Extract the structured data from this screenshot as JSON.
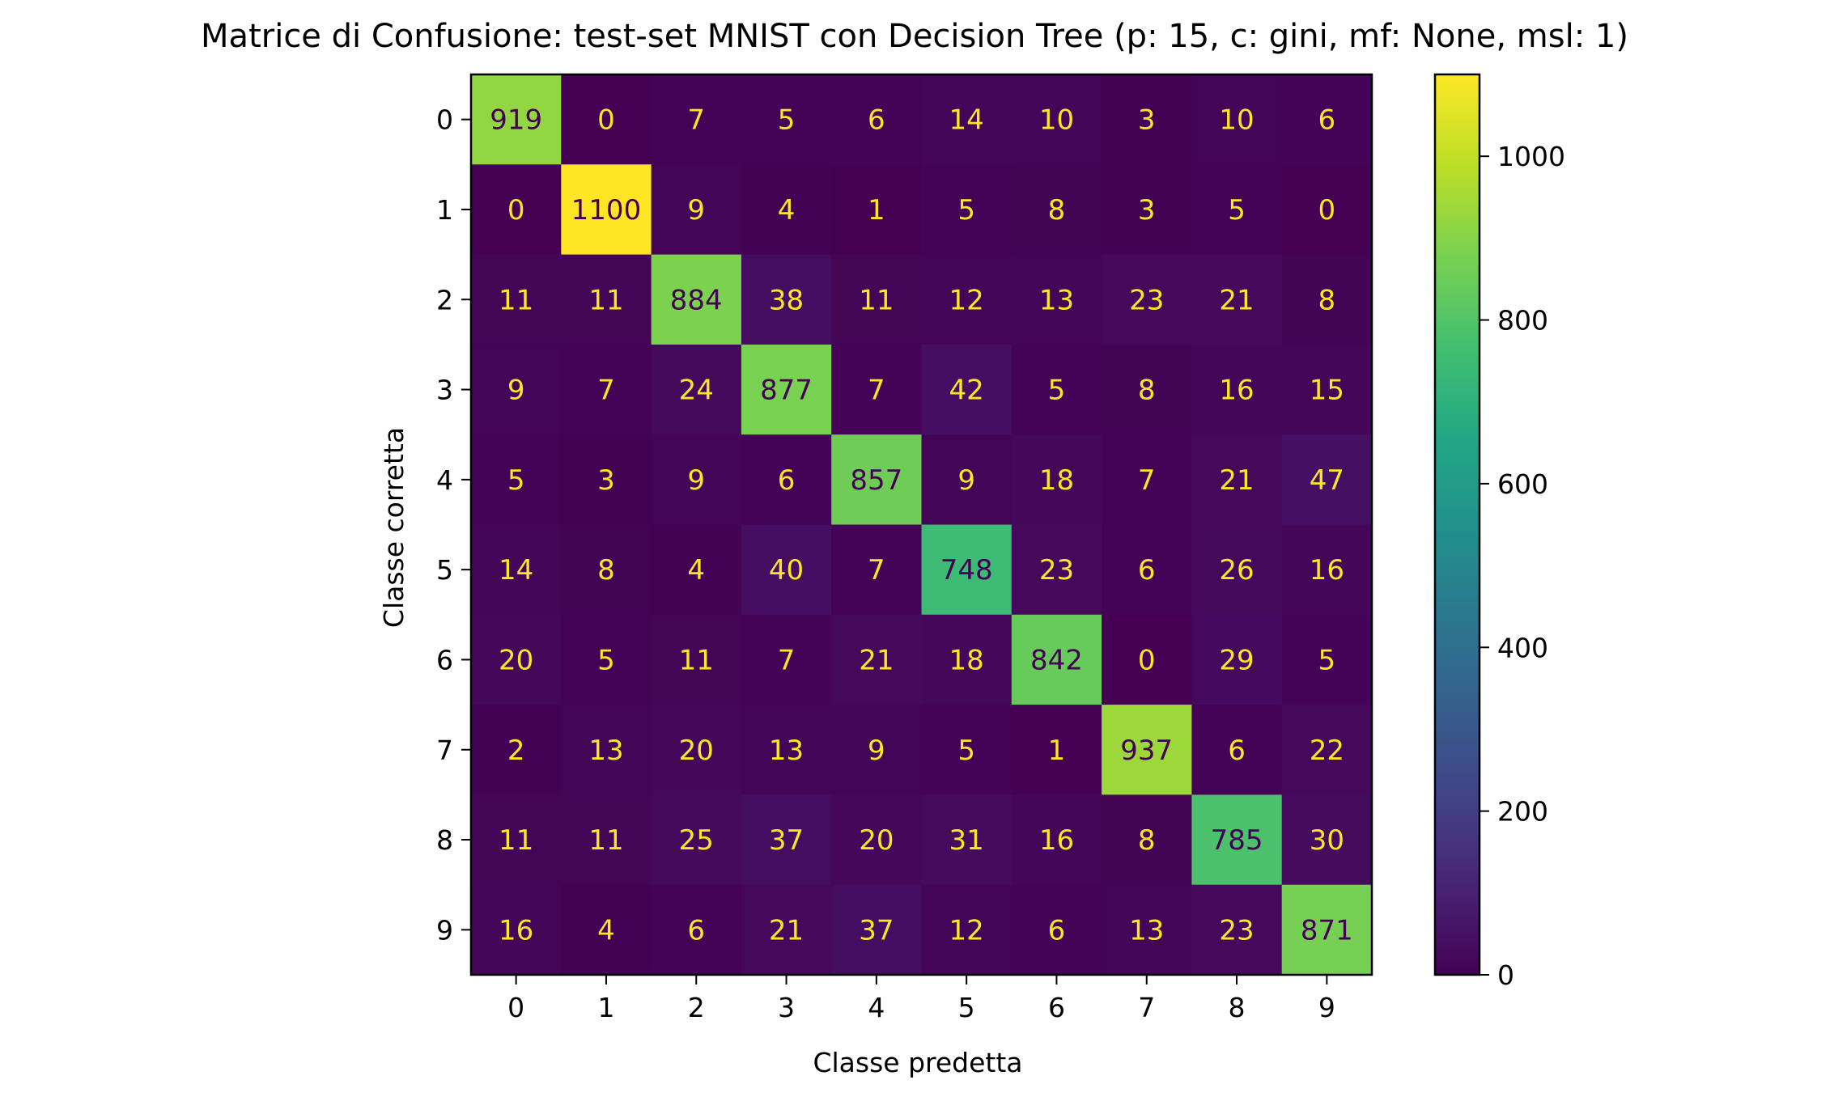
{
  "chart_data": {
    "type": "heatmap",
    "title": "Matrice di Confusione: test-set MNIST con Decision Tree (p: 15, c: gini, mf: None, msl: 1)",
    "xlabel": "Classe predetta",
    "ylabel": "Classe corretta",
    "x_categories": [
      "0",
      "1",
      "2",
      "3",
      "4",
      "5",
      "6",
      "7",
      "8",
      "9"
    ],
    "y_categories": [
      "0",
      "1",
      "2",
      "3",
      "4",
      "5",
      "6",
      "7",
      "8",
      "9"
    ],
    "values": [
      [
        919,
        0,
        7,
        5,
        6,
        14,
        10,
        3,
        10,
        6
      ],
      [
        0,
        1100,
        9,
        4,
        1,
        5,
        8,
        3,
        5,
        0
      ],
      [
        11,
        11,
        884,
        38,
        11,
        12,
        13,
        23,
        21,
        8
      ],
      [
        9,
        7,
        24,
        877,
        7,
        42,
        5,
        8,
        16,
        15
      ],
      [
        5,
        3,
        9,
        6,
        857,
        9,
        18,
        7,
        21,
        47
      ],
      [
        14,
        8,
        4,
        40,
        7,
        748,
        23,
        6,
        26,
        16
      ],
      [
        20,
        5,
        11,
        7,
        21,
        18,
        842,
        0,
        29,
        5
      ],
      [
        2,
        13,
        20,
        13,
        9,
        5,
        1,
        937,
        6,
        22
      ],
      [
        11,
        11,
        25,
        37,
        20,
        31,
        16,
        8,
        785,
        30
      ],
      [
        16,
        4,
        6,
        21,
        37,
        12,
        6,
        13,
        23,
        871
      ]
    ],
    "colormap": "viridis",
    "color_range": [
      0,
      1100
    ],
    "colorbar_ticks": [
      0,
      200,
      400,
      600,
      800,
      1000
    ],
    "text_color_light": "#fde725",
    "text_color_dark": "#440154"
  }
}
